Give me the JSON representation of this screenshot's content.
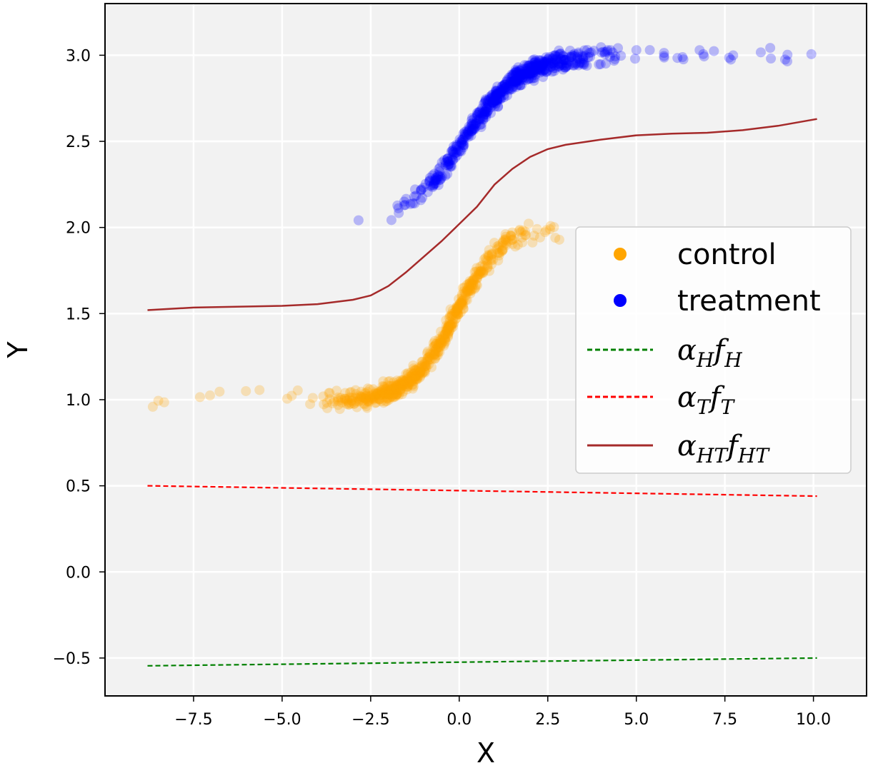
{
  "chart_data": {
    "type": "scatter",
    "title": "",
    "xlabel": "X",
    "ylabel": "Y",
    "xlim": [
      -10.0,
      11.5
    ],
    "ylim": [
      -0.72,
      3.3
    ],
    "grid": true,
    "legend_position": "center-right",
    "xticks": [
      -7.5,
      -5.0,
      -2.5,
      0.0,
      2.5,
      5.0,
      7.5,
      10.0
    ],
    "xtick_labels": [
      "−7.5",
      "−5.0",
      "−2.5",
      "0.0",
      "2.5",
      "5.0",
      "7.5",
      "10.0"
    ],
    "yticks": [
      -0.5,
      0.0,
      0.5,
      1.0,
      1.5,
      2.0,
      2.5,
      3.0
    ],
    "ytick_labels": [
      "−0.5",
      "0.0",
      "0.5",
      "1.0",
      "1.5",
      "2.0",
      "2.5",
      "3.0"
    ],
    "series": [
      {
        "name": "control",
        "kind": "scatter",
        "color": "#ffa500",
        "x_range": [
          -8.8,
          3.5
        ],
        "y_model": "1.0 + 1.0 / (1 + exp(-1.6 * (x + 0.1)))",
        "y_noise": 0.04
      },
      {
        "name": "treatment",
        "kind": "scatter",
        "color": "#0000ff",
        "x_range": [
          -3.3,
          10.1
        ],
        "y_model": "2.0 + 1.0 / (1 + exp(-1.2 * (x - 0.1)))",
        "y_noise": 0.04
      },
      {
        "name": "α_H f_H",
        "kind": "line",
        "style": "dashed",
        "color": "#008000",
        "x": [
          -8.8,
          10.1
        ],
        "y": [
          -0.545,
          -0.5
        ]
      },
      {
        "name": "α_T f_T",
        "kind": "line",
        "style": "dashed",
        "color": "#ff0000",
        "x": [
          -8.8,
          10.1
        ],
        "y": [
          0.5,
          0.44
        ]
      },
      {
        "name": "α_HT f_HT",
        "kind": "line",
        "style": "solid",
        "color": "#a52a2a",
        "x": [
          -8.8,
          -7.5,
          -5.0,
          -4.0,
          -3.0,
          -2.5,
          -2.0,
          -1.5,
          -1.0,
          -0.5,
          0.0,
          0.5,
          1.0,
          1.5,
          2.0,
          2.5,
          3.0,
          4.0,
          5.0,
          6.0,
          7.0,
          8.0,
          9.0,
          10.1
        ],
        "y": [
          1.52,
          1.535,
          1.545,
          1.555,
          1.58,
          1.605,
          1.66,
          1.74,
          1.83,
          1.92,
          2.02,
          2.12,
          2.25,
          2.34,
          2.41,
          2.455,
          2.48,
          2.51,
          2.535,
          2.545,
          2.55,
          2.565,
          2.59,
          2.63
        ]
      }
    ],
    "legend": {
      "entries": [
        {
          "label": "control",
          "marker": "dot",
          "color": "#ffa500"
        },
        {
          "label": "treatment",
          "marker": "dot",
          "color": "#0000ff"
        },
        {
          "label": "α",
          "sub": "H",
          "label2": "f",
          "sub2": "H",
          "marker": "dashed",
          "color": "#008000"
        },
        {
          "label": "α",
          "sub": "T",
          "label2": "f",
          "sub2": "T",
          "marker": "dashed",
          "color": "#ff0000"
        },
        {
          "label": "α",
          "sub": "HT",
          "label2": "f",
          "sub2": "HT",
          "marker": "solid",
          "color": "#a52a2a"
        }
      ]
    }
  }
}
